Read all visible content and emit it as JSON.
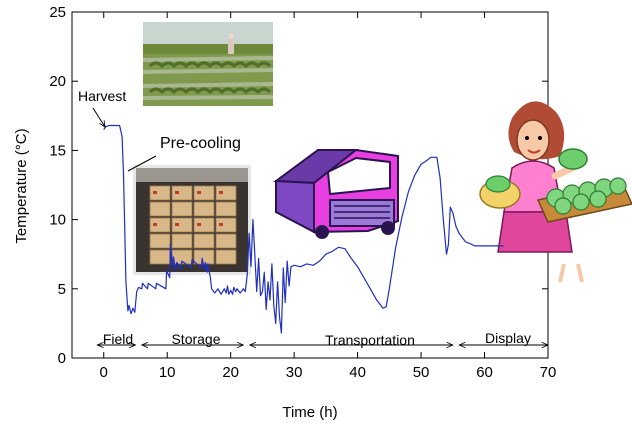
{
  "chart_data": {
    "type": "line",
    "title": "",
    "xlabel": "Time (h)",
    "ylabel": "Temperature (°C)",
    "xlim": [
      -5,
      70
    ],
    "ylim": [
      0,
      25
    ],
    "xticks": [
      0,
      10,
      20,
      30,
      40,
      50,
      60,
      70
    ],
    "yticks": [
      0,
      5,
      10,
      15,
      20,
      25
    ],
    "grid": false,
    "legend": "none",
    "series": [
      {
        "name": "",
        "color": "#1f2fbf",
        "x": [
          0,
          0.3,
          0.8,
          2.5,
          2.9,
          3.1,
          3.3,
          3.5,
          3.8,
          4.0,
          4.3,
          4.6,
          4.9,
          5.2,
          5.5,
          6.0,
          6.1,
          6.9,
          7.0,
          8.2,
          8.3,
          9.8,
          9.9,
          10.4,
          10.5,
          10.9,
          11.0,
          11.3,
          11.5,
          12.2,
          12.3,
          13.8,
          13.9,
          15.4,
          15.5,
          15.9,
          16.0,
          16.3,
          16.4,
          16.8,
          17.0,
          17.5,
          18.0,
          18.5,
          19.0,
          19.3,
          19.5,
          19.7,
          20.0,
          20.3,
          20.5,
          20.8,
          21.0,
          21.5,
          22.0,
          22.3,
          22.6,
          22.9,
          23.2,
          23.5,
          23.8,
          24.1,
          24.4,
          24.7,
          25.0,
          25.3,
          25.6,
          25.9,
          26.2,
          26.5,
          26.8,
          27.1,
          27.4,
          27.7,
          28.0,
          28.3,
          28.6,
          28.9,
          29.2,
          29.5,
          30.0,
          31.0,
          32.0,
          33.0,
          34.0,
          35.0,
          36.0,
          37.0,
          38.0,
          39.0,
          40.0,
          41.0,
          42.0,
          43.0,
          44.0,
          44.5,
          45.0,
          46.0,
          47.0,
          48.0,
          49.0,
          50.0,
          51.0,
          51.5,
          52.5,
          53.0,
          53.5,
          54.0,
          54.3,
          54.6,
          55.0,
          55.5,
          56.0,
          56.5,
          57.0,
          57.5,
          58.0,
          58.5,
          59.0,
          60.0,
          61.0,
          62.0,
          63.0
        ],
        "y": [
          16.5,
          16.7,
          16.8,
          16.8,
          16.0,
          13.5,
          9.5,
          5.5,
          3.4,
          3.8,
          3.2,
          3.6,
          3.3,
          4.8,
          5.1,
          5.0,
          5.4,
          5.0,
          5.4,
          5.0,
          5.4,
          5.0,
          6.3,
          5.8,
          8.2,
          6.6,
          7.3,
          6.3,
          6.9,
          6.4,
          7.0,
          6.5,
          7.1,
          6.5,
          7.2,
          6.4,
          6.9,
          6.2,
          6.8,
          5.8,
          5.0,
          4.7,
          5.0,
          4.6,
          5.0,
          4.7,
          5.2,
          4.6,
          4.9,
          4.6,
          5.1,
          4.8,
          5.0,
          4.7,
          5.0,
          4.8,
          6.0,
          9.0,
          6.6,
          10.0,
          7.5,
          4.8,
          7.2,
          4.5,
          4.8,
          6.2,
          3.5,
          5.5,
          4.2,
          6.8,
          3.8,
          2.5,
          5.5,
          3.0,
          1.8,
          6.5,
          4.0,
          7.0,
          5.2,
          6.6,
          6.7,
          6.6,
          6.8,
          6.7,
          7.0,
          7.5,
          7.7,
          8.0,
          7.9,
          7.2,
          6.6,
          5.8,
          5.0,
          4.2,
          3.6,
          3.7,
          5.0,
          8.0,
          10.2,
          12.0,
          13.2,
          14.0,
          14.3,
          14.5,
          14.5,
          13.0,
          10.0,
          7.5,
          8.2,
          10.9,
          10.5,
          9.5,
          9.0,
          8.7,
          8.4,
          8.3,
          8.2,
          8.1,
          8.1,
          8.1,
          8.1,
          8.1,
          8.1
        ]
      }
    ],
    "annotations": [
      {
        "text": "Harvest",
        "x": 0,
        "y": 16.5
      },
      {
        "text": "Pre-cooling",
        "x": 3.1,
        "y": 13.5
      }
    ],
    "phases": [
      {
        "label": "Field",
        "x0": -1,
        "x1": 5
      },
      {
        "label": "Storage",
        "x0": 6,
        "x1": 22
      },
      {
        "label": "Transportation",
        "x0": 23,
        "x1": 55
      },
      {
        "label": "Display",
        "x0": 56,
        "x1": 70
      }
    ],
    "pictures": [
      {
        "name": "field-photo"
      },
      {
        "name": "storage-photo"
      },
      {
        "name": "truck-clipart"
      },
      {
        "name": "vendor-clipart"
      }
    ]
  }
}
